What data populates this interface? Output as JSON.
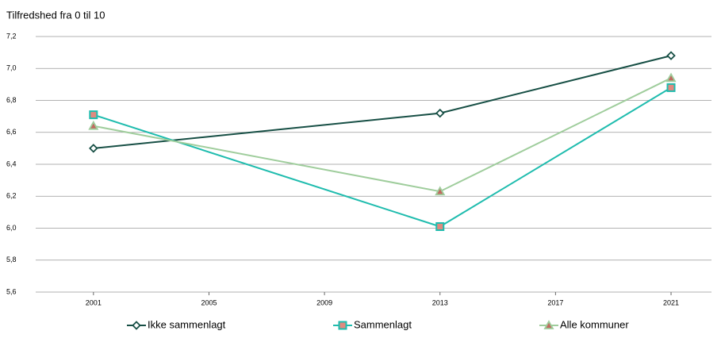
{
  "chart_data": {
    "type": "line",
    "title": "Tilfredshed fra 0 til 10",
    "x": [
      2001,
      2013,
      2021
    ],
    "xlim": [
      1999,
      2022.4
    ],
    "xticks": [
      2001,
      2005,
      2009,
      2013,
      2017,
      2021
    ],
    "ylim": [
      5.6,
      7.2
    ],
    "yticks": [
      {
        "value": 5.6,
        "label": "5,6"
      },
      {
        "value": 5.8,
        "label": "5,8"
      },
      {
        "value": 6.0,
        "label": "6,0"
      },
      {
        "value": 6.2,
        "label": "6,2"
      },
      {
        "value": 6.4,
        "label": "6,4"
      },
      {
        "value": 6.6,
        "label": "6,6"
      },
      {
        "value": 6.8,
        "label": "6,8"
      },
      {
        "value": 7.0,
        "label": "7,0"
      },
      {
        "value": 7.2,
        "label": "7,2"
      }
    ],
    "grid": true,
    "legend": "bottom",
    "series": [
      {
        "name": "Ikke sammenlagt",
        "color": "#174f45",
        "marker": "diamond",
        "values": [
          6.5,
          6.72,
          7.08
        ]
      },
      {
        "name": "Sammenlagt",
        "color": "#1fbcae",
        "marker": "square",
        "values": [
          6.71,
          6.01,
          6.88
        ]
      },
      {
        "name": "Alle kommuner",
        "color": "#9fcd9c",
        "marker": "triangle",
        "values": [
          6.64,
          6.23,
          6.94
        ]
      }
    ]
  }
}
